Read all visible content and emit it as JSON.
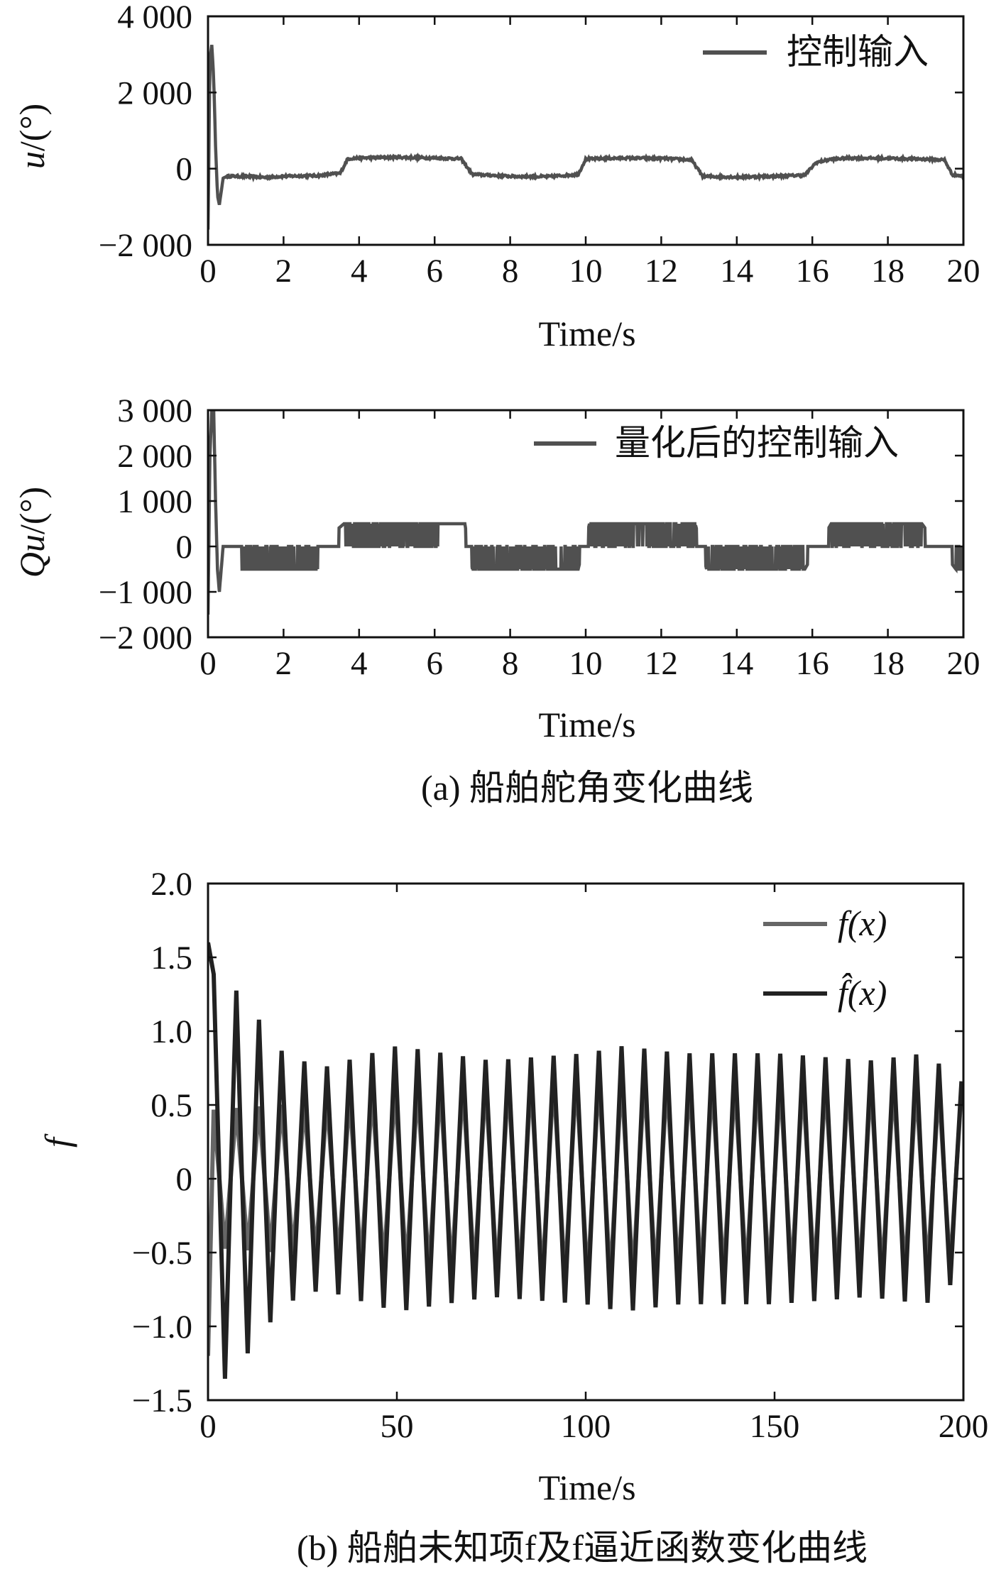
{
  "chart_data": [
    {
      "type": "line",
      "xlabel": "Time/s",
      "ylabel": "u/(°)",
      "xlim": [
        0,
        20
      ],
      "ylim": [
        -2000,
        4000
      ],
      "xticks": [
        "0",
        "2",
        "4",
        "6",
        "8",
        "10",
        "12",
        "14",
        "16",
        "18",
        "20"
      ],
      "yticks": [
        "4 000",
        "2 000",
        "0",
        "−2 000"
      ],
      "legend_position": "top-right",
      "series": [
        {
          "name": "控制输入",
          "color": "#505050",
          "x": [
            0,
            0.05,
            0.1,
            0.15,
            0.2,
            0.25,
            0.3,
            0.35,
            0.4,
            0.5,
            0.7,
            1,
            1.5,
            2,
            2.5,
            3,
            3.2,
            3.5,
            3.7,
            4,
            5,
            6,
            6.7,
            7,
            8,
            9,
            9.8,
            10,
            11,
            12,
            12.8,
            13.1,
            14,
            15,
            15.8,
            16.1,
            16.5,
            17,
            18,
            19,
            19.5,
            19.7,
            20
          ],
          "y": [
            -1600,
            2900,
            3250,
            2400,
            600,
            -700,
            -950,
            -600,
            -250,
            -200,
            -200,
            -200,
            -230,
            -200,
            -190,
            -180,
            -150,
            -120,
            260,
            280,
            300,
            280,
            260,
            -150,
            -200,
            -210,
            -150,
            250,
            280,
            270,
            230,
            -200,
            -220,
            -200,
            -170,
            160,
            250,
            280,
            270,
            250,
            230,
            -150,
            -200
          ]
        }
      ]
    },
    {
      "type": "line",
      "xlabel": "Time/s",
      "ylabel": "Qu/(°)",
      "xlim": [
        0,
        20
      ],
      "ylim": [
        -2000,
        3000
      ],
      "xticks": [
        "0",
        "2",
        "4",
        "6",
        "8",
        "10",
        "12",
        "14",
        "16",
        "18",
        "20"
      ],
      "yticks": [
        "3 000",
        "2 000",
        "1 000",
        "0",
        "−1 000",
        "−2 000"
      ],
      "legend_position": "top-right",
      "series": [
        {
          "name": "量化后的控制输入",
          "color": "#505050",
          "x": [
            0,
            0.05,
            0.1,
            0.15,
            0.2,
            0.25,
            0.3,
            0.35,
            0.4,
            0.5,
            0.8,
            2.9,
            3.6,
            6.8,
            7.0,
            9.8,
            10.1,
            12.9,
            13.2,
            15.8,
            16.5,
            18.9,
            19.8,
            20
          ],
          "y": [
            -1500,
            2000,
            3000,
            3000,
            1000,
            -500,
            -1000,
            -500,
            0,
            0,
            0,
            0,
            500,
            500,
            -500,
            -500,
            500,
            500,
            -500,
            -500,
            500,
            500,
            -500,
            -500
          ],
          "chatter": [
            {
              "from": 0.9,
              "to": 2.9,
              "level": -500
            },
            {
              "from": 3.6,
              "to": 6.1,
              "level": 500
            },
            {
              "from": 7.0,
              "to": 9.8,
              "level": -500
            },
            {
              "from": 10.1,
              "to": 12.9,
              "level": 500
            },
            {
              "from": 13.2,
              "to": 15.8,
              "level": -500
            },
            {
              "from": 16.5,
              "to": 18.9,
              "level": 500
            },
            {
              "from": 19.8,
              "to": 20,
              "level": -500
            }
          ]
        }
      ]
    },
    {
      "type": "line",
      "xlabel": "Time/s",
      "ylabel": "f",
      "xlim": [
        0,
        200
      ],
      "ylim": [
        -1.5,
        2.0
      ],
      "xticks": [
        "0",
        "50",
        "100",
        "150",
        "200"
      ],
      "yticks": [
        "2.0",
        "1.5",
        "1.0",
        "0.5",
        "0",
        "−0.5",
        "−1.0",
        "−1.5"
      ],
      "legend_position": "top-right",
      "series": [
        {
          "name": "f(x)",
          "color": "#666666",
          "period": 6.0,
          "x": [
            0,
            25,
            50,
            75,
            100,
            125,
            150,
            175,
            200
          ],
          "amplitude": [
            0.5,
            0.55,
            0.65,
            0.7,
            0.75,
            0.7,
            0.7,
            0.7,
            0.65
          ]
        },
        {
          "name": "f̂(x)",
          "color": "#222222",
          "period": 6.0,
          "x": [
            0,
            5,
            10,
            20,
            30,
            50,
            75,
            100,
            110,
            125,
            150,
            175,
            190,
            200
          ],
          "amplitude": [
            1.4,
            1.35,
            1.2,
            0.85,
            0.75,
            0.9,
            0.8,
            0.85,
            0.9,
            0.85,
            0.85,
            0.8,
            0.85,
            0.65
          ]
        }
      ]
    }
  ],
  "captions": {
    "a": "(a) 船舶舵角变化曲线",
    "b": "(b) 船舶未知项f及f逼近函数变化曲线"
  }
}
